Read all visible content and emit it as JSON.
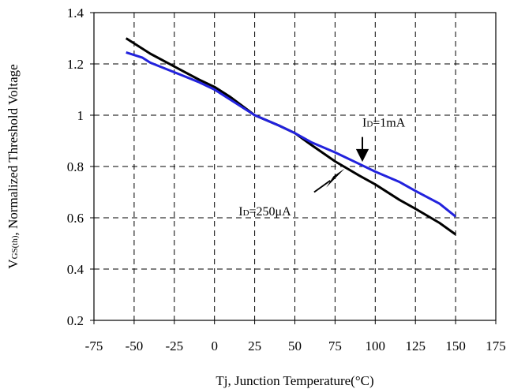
{
  "chart_data": {
    "type": "line",
    "title": "",
    "xlabel": "Tj, Junction Temperature(°C)",
    "ylabel": {
      "prefix": "V",
      "subscript": "GS(th)",
      "suffix": ", Normalized Threshold Voltage"
    },
    "xlim": [
      -75,
      175
    ],
    "ylim": [
      0.2,
      1.4
    ],
    "x_ticks": [
      "-75",
      "-50",
      "-25",
      "0",
      "25",
      "50",
      "75",
      "100",
      "125",
      "150",
      "175"
    ],
    "y_ticks": [
      "0.2",
      "0.4",
      "0.6",
      "0.8",
      "1",
      "1.2",
      "1.4"
    ],
    "grid": true,
    "series": [
      {
        "name": "ID=250μA",
        "color": "#000000",
        "x": [
          -55,
          -40,
          -25,
          -10,
          0,
          10,
          25,
          40,
          50,
          60,
          75,
          90,
          100,
          115,
          125,
          140,
          150
        ],
        "y": [
          1.3,
          1.24,
          1.19,
          1.14,
          1.11,
          1.07,
          1.0,
          0.96,
          0.93,
          0.885,
          0.82,
          0.765,
          0.73,
          0.67,
          0.635,
          0.58,
          0.535
        ]
      },
      {
        "name": "ID=1mA",
        "color": "#2222dd",
        "x": [
          -55,
          -45,
          -40,
          -30,
          -20,
          -10,
          0,
          10,
          25,
          40,
          50,
          60,
          75,
          90,
          100,
          115,
          125,
          140,
          150
        ],
        "y": [
          1.245,
          1.225,
          1.205,
          1.18,
          1.155,
          1.13,
          1.1,
          1.06,
          1.0,
          0.96,
          0.93,
          0.895,
          0.855,
          0.81,
          0.78,
          0.74,
          0.705,
          0.655,
          0.605
        ]
      }
    ],
    "annotations": [
      {
        "main": "I",
        "sub": "D",
        "rest": "=1mA",
        "x": 92,
        "y": 0.955
      },
      {
        "main": "I",
        "sub": "D",
        "rest": "=250μA",
        "x": 15,
        "y": 0.61
      }
    ]
  }
}
